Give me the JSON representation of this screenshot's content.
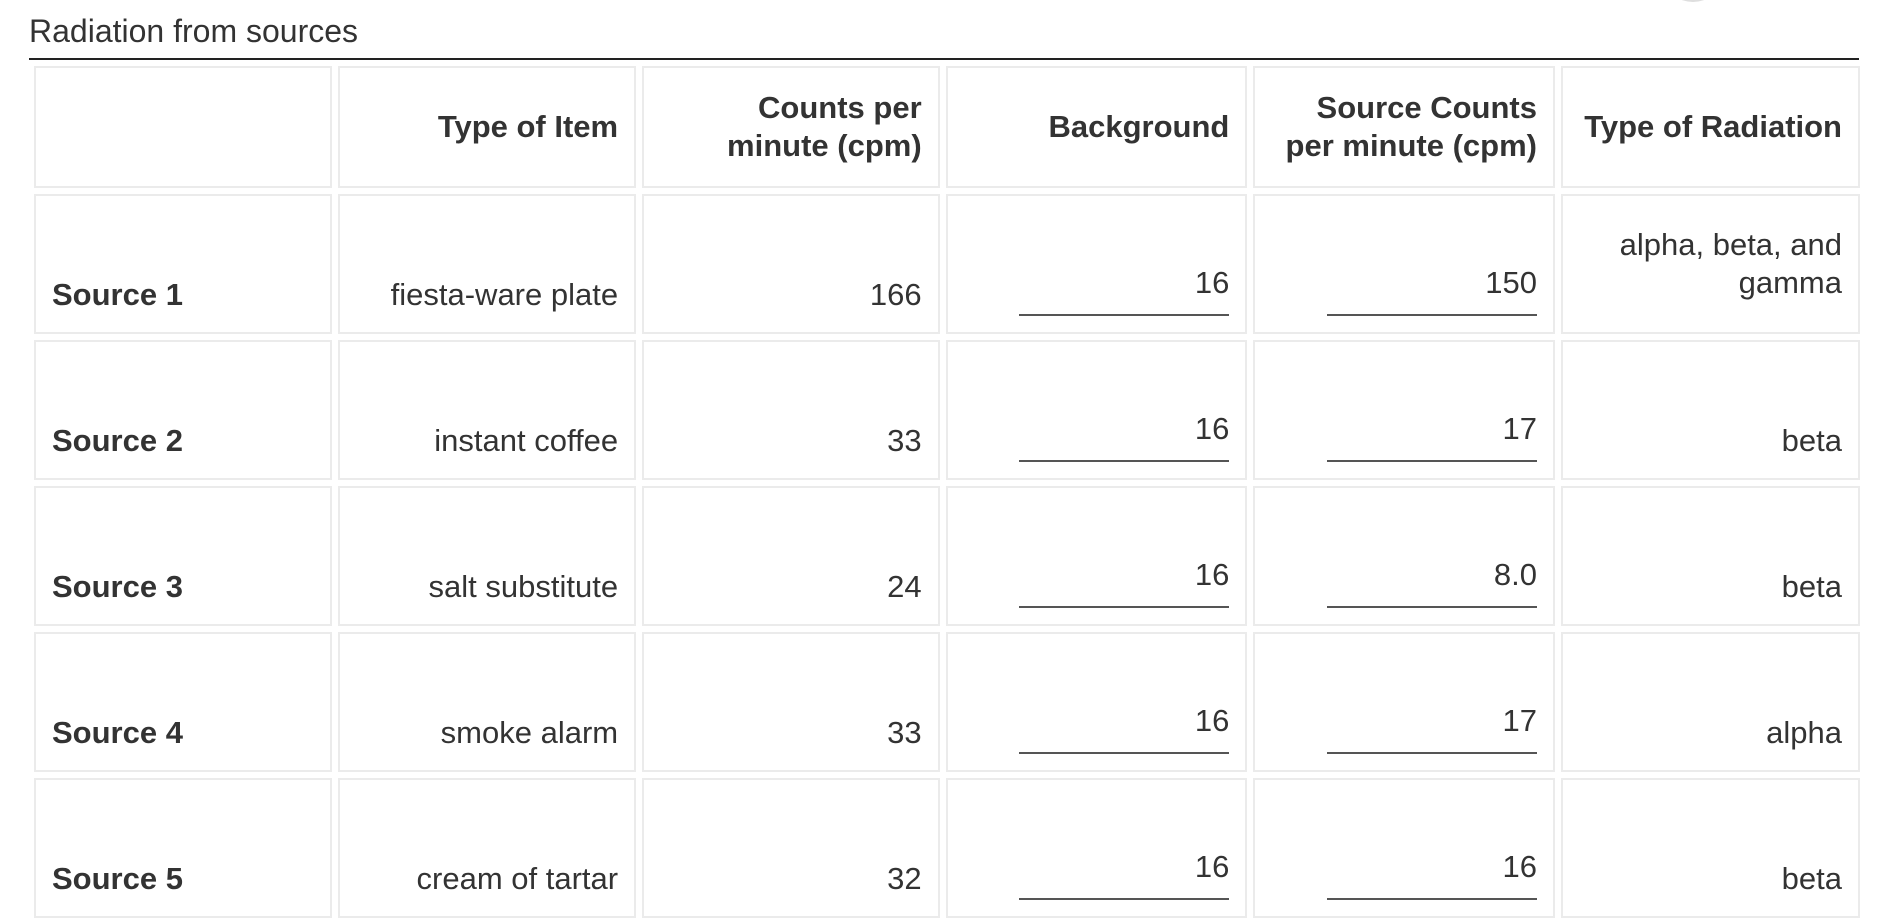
{
  "section": {
    "title": "Radiation from sources"
  },
  "table": {
    "headers": {
      "row_label": "",
      "type_of_item": "Type of Item",
      "counts_per_minute": "Counts per minute (cpm)",
      "background": "Background",
      "source_counts": "Source Counts per minute (cpm)",
      "type_of_radiation": "Type of Radiation"
    },
    "rows": [
      {
        "label": "Source 1",
        "item": "fiesta-ware plate",
        "cpm": "166",
        "background": "16",
        "source_cpm": "150",
        "radiation": "alpha, beta, and gamma"
      },
      {
        "label": "Source 2",
        "item": "instant coffee",
        "cpm": "33",
        "background": "16",
        "source_cpm": "17",
        "radiation": "beta"
      },
      {
        "label": "Source 3",
        "item": "salt substitute",
        "cpm": "24",
        "background": "16",
        "source_cpm": "8.0",
        "radiation": "beta"
      },
      {
        "label": "Source 4",
        "item": "smoke alarm",
        "cpm": "33",
        "background": "16",
        "source_cpm": "17",
        "radiation": "alpha"
      },
      {
        "label": "Source 5",
        "item": "cream of tartar",
        "cpm": "32",
        "background": "16",
        "source_cpm": "16",
        "radiation": "beta"
      }
    ]
  }
}
